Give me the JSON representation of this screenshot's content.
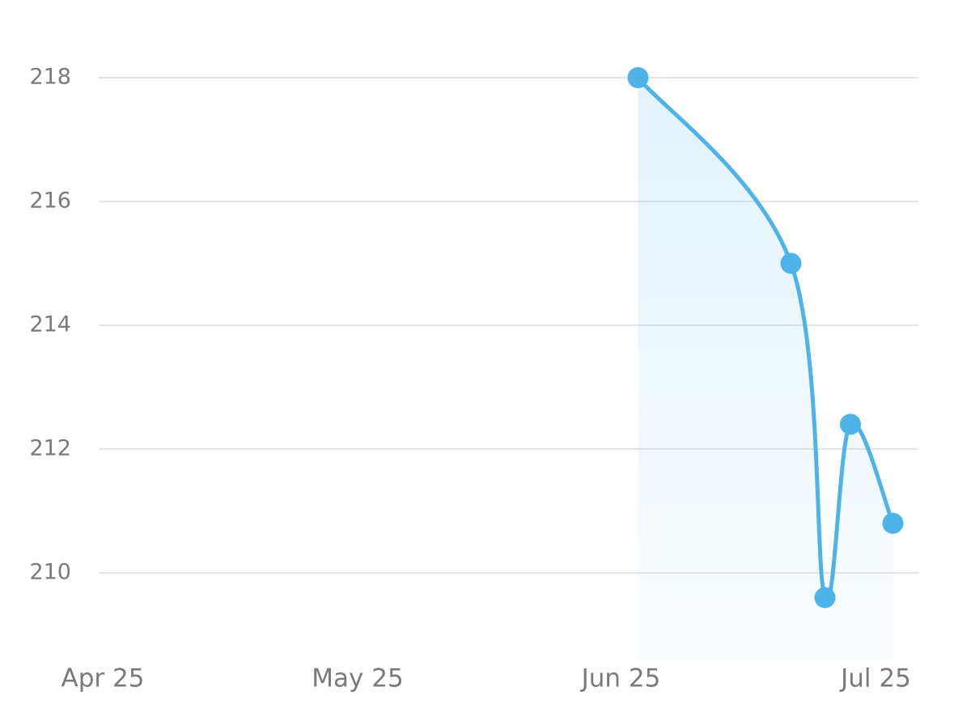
{
  "chart_data": {
    "type": "area",
    "x": [
      "Jun 27",
      "Jul 15",
      "Jul 19",
      "Jul 22",
      "Jul 27"
    ],
    "series": [
      {
        "color": "#4db3e8",
        "values": [
          218,
          215,
          209.6,
          212.4,
          210.8
        ]
      }
    ],
    "xlim": [
      "Apr 25",
      "Jul 30"
    ],
    "xticks": [
      "Apr 25",
      "May 25",
      "Jun 25",
      "Jul 25"
    ],
    "ylim": [
      208.6,
      218
    ],
    "yticks": [
      210,
      212,
      214,
      216,
      218
    ],
    "grid": true
  }
}
